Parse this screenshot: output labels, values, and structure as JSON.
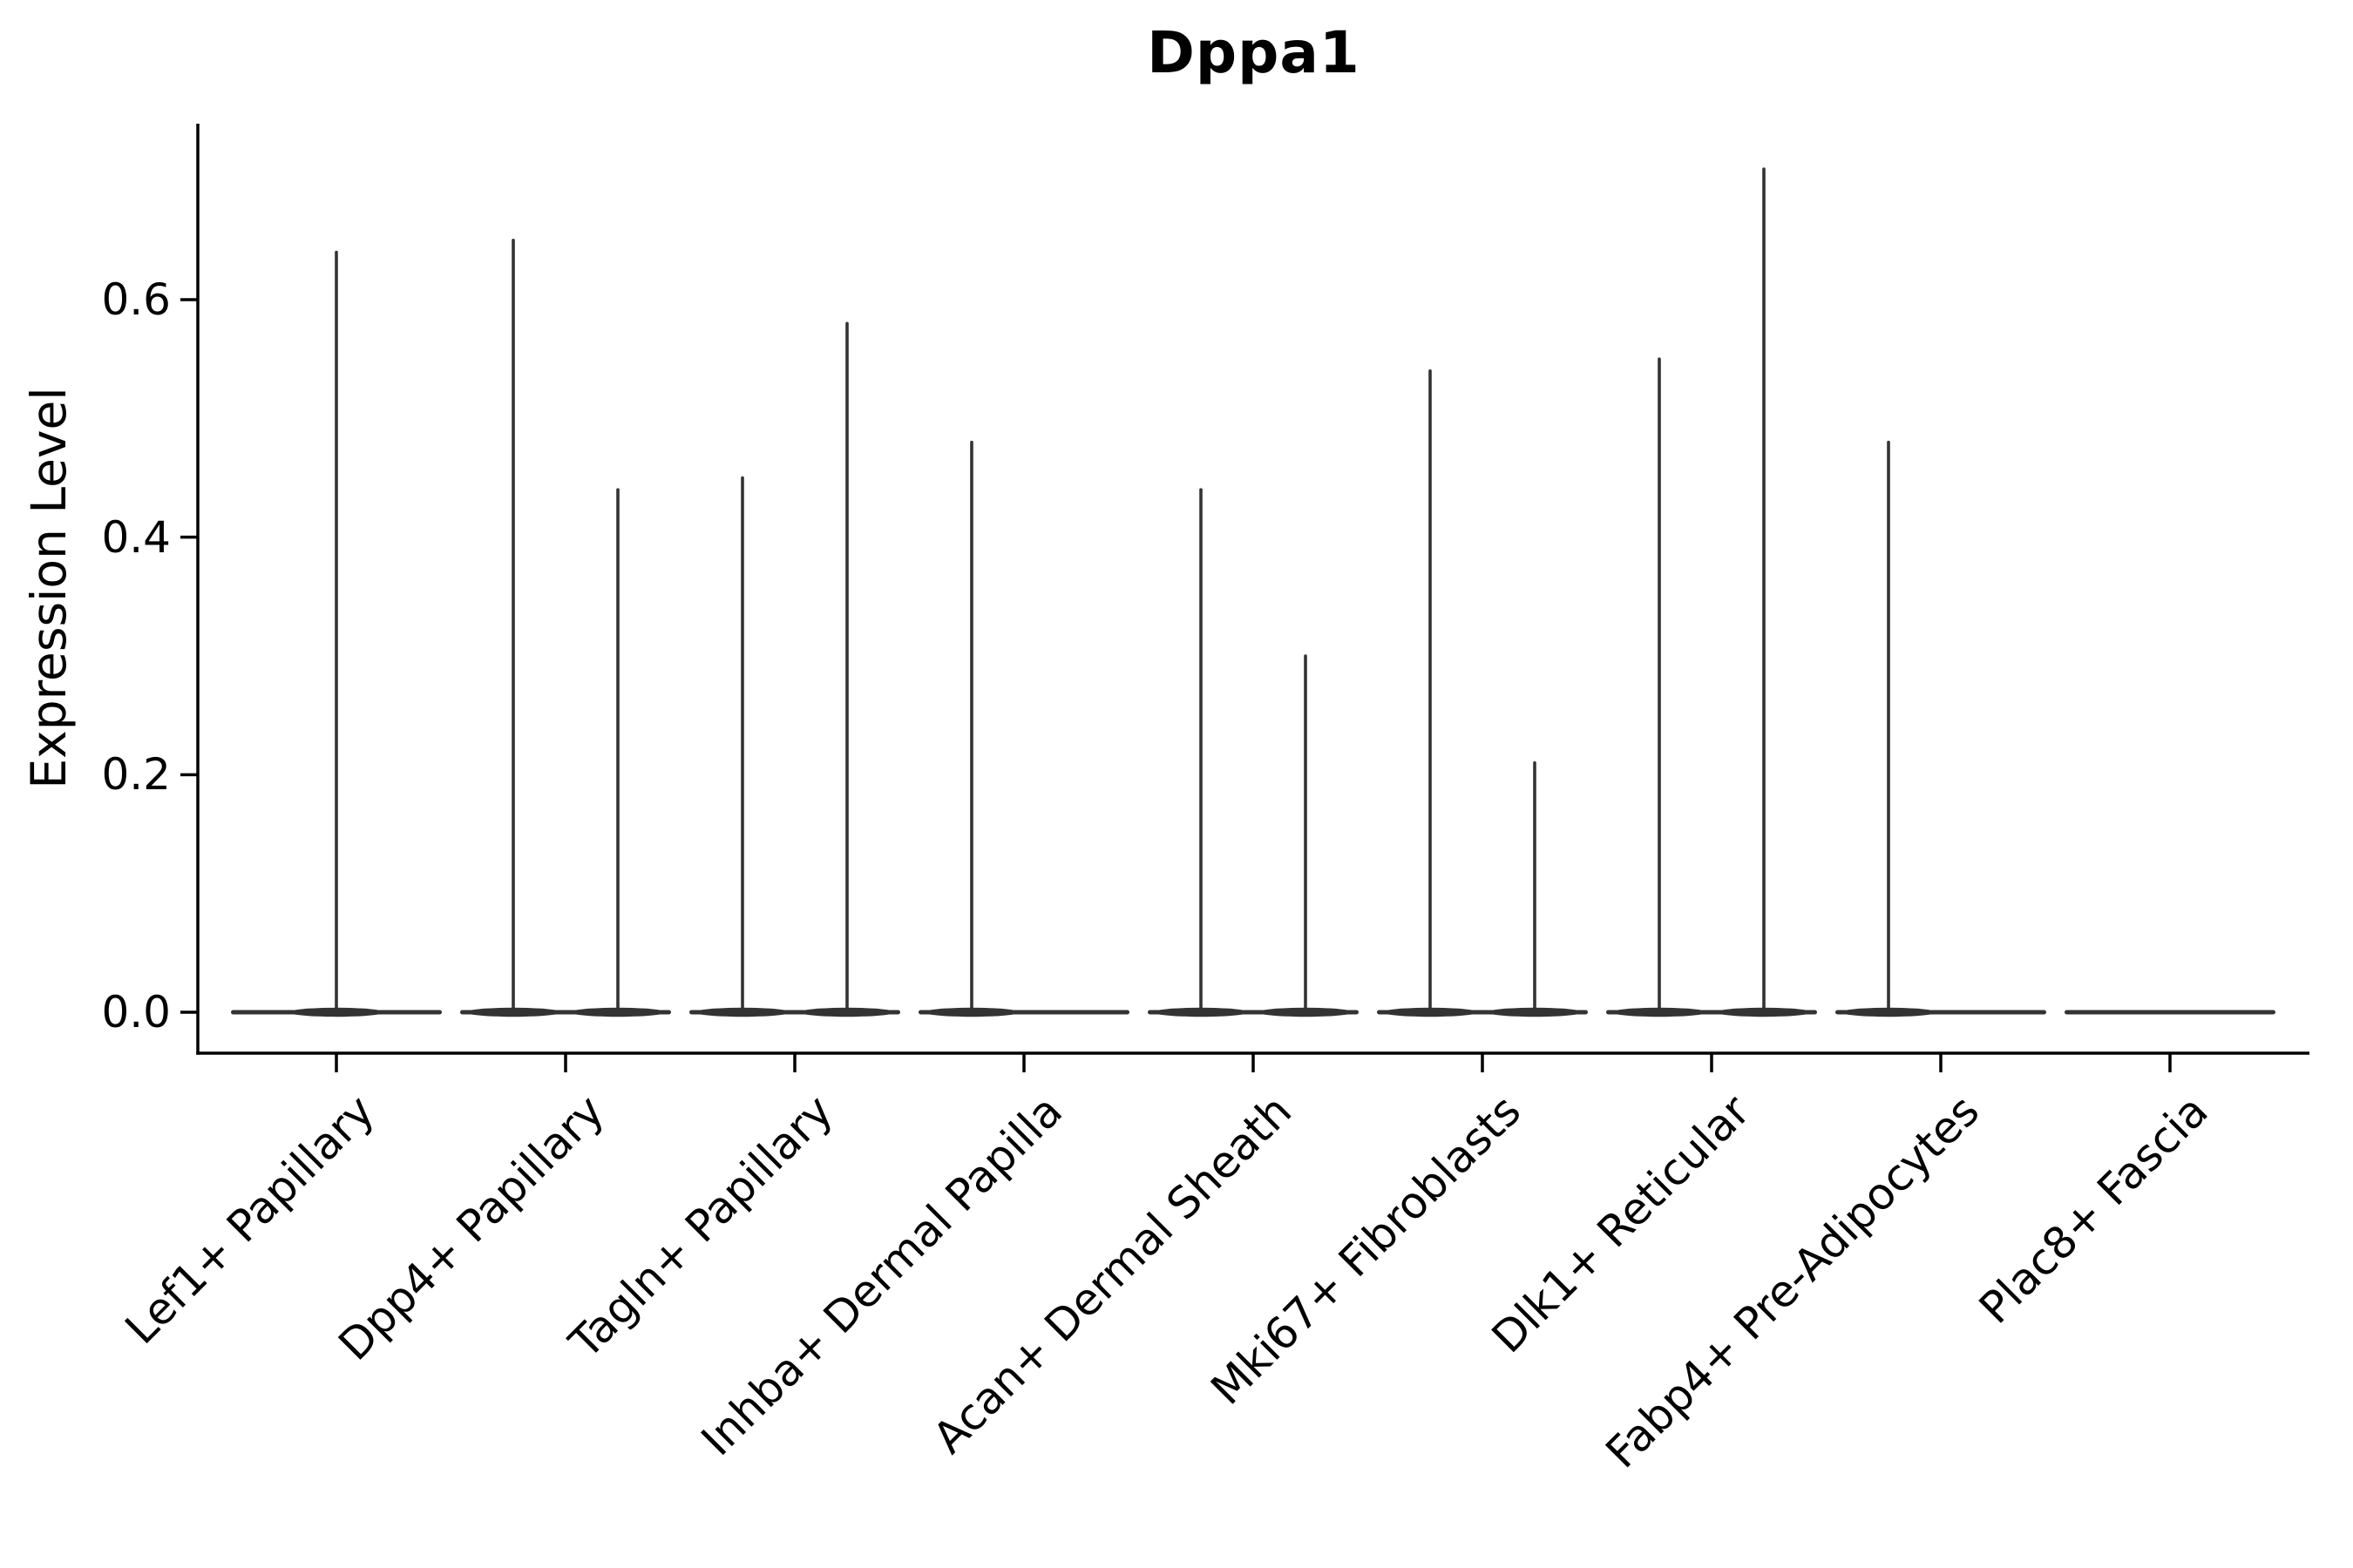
{
  "chart_data": {
    "type": "violin",
    "title": "Dppa1",
    "ylabel": "Expression Level",
    "xlabel": "",
    "yticks": [
      "0.0",
      "0.2",
      "0.4",
      "0.6"
    ],
    "ytick_values": [
      0.0,
      0.2,
      0.4,
      0.6
    ],
    "ylim": [
      -0.035,
      0.748
    ],
    "grid": false,
    "legend_position": "none",
    "categories": [
      "Lef1+ Papillary",
      "Dpp4+ Papillary",
      "Tagln+ Papillary",
      "Inhba+ Dermal Papilla",
      "Acan+ Dermal Sheath",
      "Mki67+ Fibroblasts",
      "Dlk1+ Reticular",
      "Fabp4+ Pre-Adipocytes",
      "Plac8+ Fascia"
    ],
    "series": [
      {
        "category": "Lef1+ Papillary",
        "violins": [
          {
            "position": "center",
            "max_expression": 0.64
          }
        ]
      },
      {
        "category": "Dpp4+ Papillary",
        "violins": [
          {
            "position": "left",
            "max_expression": 0.65
          },
          {
            "position": "right",
            "max_expression": 0.44
          }
        ]
      },
      {
        "category": "Tagln+ Papillary",
        "violins": [
          {
            "position": "left",
            "max_expression": 0.45
          },
          {
            "position": "right",
            "max_expression": 0.58
          }
        ]
      },
      {
        "category": "Inhba+ Dermal Papilla",
        "violins": [
          {
            "position": "left",
            "max_expression": 0.48
          },
          {
            "position": "right",
            "max_expression": 0.0
          }
        ]
      },
      {
        "category": "Acan+ Dermal Sheath",
        "violins": [
          {
            "position": "left",
            "max_expression": 0.44
          },
          {
            "position": "right",
            "max_expression": 0.3
          }
        ]
      },
      {
        "category": "Mki67+ Fibroblasts",
        "violins": [
          {
            "position": "left",
            "max_expression": 0.54
          },
          {
            "position": "right",
            "max_expression": 0.21
          }
        ]
      },
      {
        "category": "Dlk1+ Reticular",
        "violins": [
          {
            "position": "left",
            "max_expression": 0.55
          },
          {
            "position": "right",
            "max_expression": 0.71
          }
        ]
      },
      {
        "category": "Fabp4+ Pre-Adipocytes",
        "violins": [
          {
            "position": "left",
            "max_expression": 0.48
          },
          {
            "position": "right",
            "max_expression": 0.0
          }
        ]
      },
      {
        "category": "Plac8+ Fascia",
        "violins": [
          {
            "position": "center",
            "max_expression": 0.0
          }
        ]
      }
    ],
    "colors": {
      "violin": "#333333",
      "axis": "#000000",
      "background": "#ffffff"
    }
  }
}
